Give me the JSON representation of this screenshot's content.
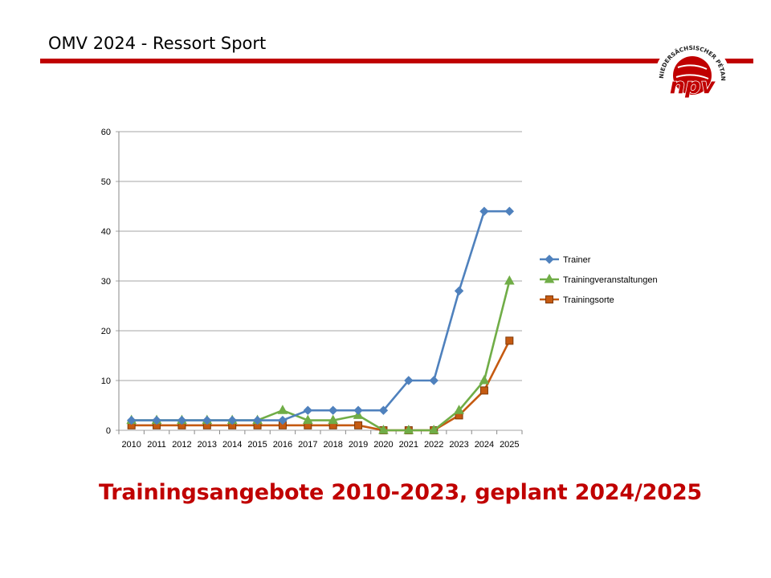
{
  "header": {
    "title": "OMV 2024 - Ressort Sport"
  },
  "logo": {
    "arc_text": "NIEDERSÄCHSISCHER PÉTANQUE-VERBAND",
    "wordmark": "npv",
    "color": "#c00000"
  },
  "caption": "Trainingsangebote 2010-2023, geplant 2024/2025",
  "chart_data": {
    "type": "line",
    "categories": [
      "2010",
      "2011",
      "2012",
      "2013",
      "2014",
      "2015",
      "2016",
      "2017",
      "2018",
      "2019",
      "2020",
      "2021",
      "2022",
      "2023",
      "2024",
      "2025"
    ],
    "series": [
      {
        "name": "Trainer",
        "color": "#4f81bd",
        "marker": "diamond",
        "values": [
          2,
          2,
          2,
          2,
          2,
          2,
          2,
          4,
          4,
          4,
          4,
          10,
          10,
          28,
          44,
          44
        ]
      },
      {
        "name": "Trainingveranstaltungen",
        "color": "#70ad47",
        "marker": "triangle",
        "values": [
          2,
          2,
          2,
          2,
          2,
          2,
          4,
          2,
          2,
          3,
          0,
          0,
          0,
          4,
          10,
          30
        ]
      },
      {
        "name": "Trainingsorte",
        "color": "#c55a11",
        "marker": "square",
        "values": [
          1,
          1,
          1,
          1,
          1,
          1,
          1,
          1,
          1,
          1,
          0,
          0,
          0,
          3,
          8,
          18
        ]
      }
    ],
    "y_ticks": [
      0,
      10,
      20,
      30,
      40,
      50,
      60
    ],
    "ylim": [
      0,
      60
    ],
    "grid": true,
    "legend": "right"
  }
}
